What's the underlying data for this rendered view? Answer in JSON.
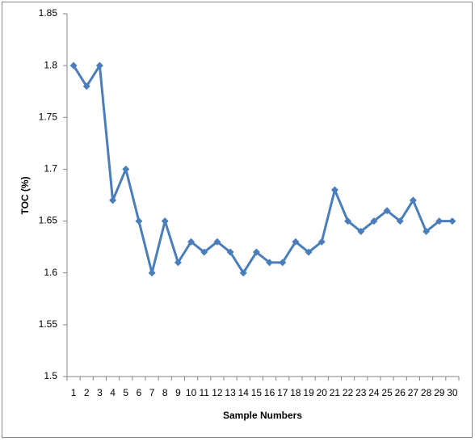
{
  "chart_data": {
    "type": "line",
    "xlabel": "Sample Numbers",
    "ylabel": "TOC (%)",
    "categories": [
      "1",
      "2",
      "3",
      "4",
      "5",
      "6",
      "7",
      "8",
      "9",
      "10",
      "11",
      "12",
      "13",
      "14",
      "15",
      "16",
      "17",
      "18",
      "19",
      "20",
      "21",
      "22",
      "23",
      "24",
      "25",
      "26",
      "27",
      "28",
      "29",
      "30"
    ],
    "values": [
      1.8,
      1.78,
      1.8,
      1.67,
      1.7,
      1.65,
      1.6,
      1.65,
      1.61,
      1.63,
      1.62,
      1.63,
      1.62,
      1.6,
      1.62,
      1.61,
      1.61,
      1.63,
      1.62,
      1.63,
      1.68,
      1.65,
      1.64,
      1.65,
      1.66,
      1.65,
      1.67,
      1.64,
      1.65,
      1.65
    ],
    "color": "#4a7ebb",
    "ylim": [
      1.5,
      1.85
    ],
    "yticks": [
      1.5,
      1.55,
      1.6,
      1.65,
      1.7,
      1.75,
      1.8,
      1.85
    ],
    "grid": false
  }
}
